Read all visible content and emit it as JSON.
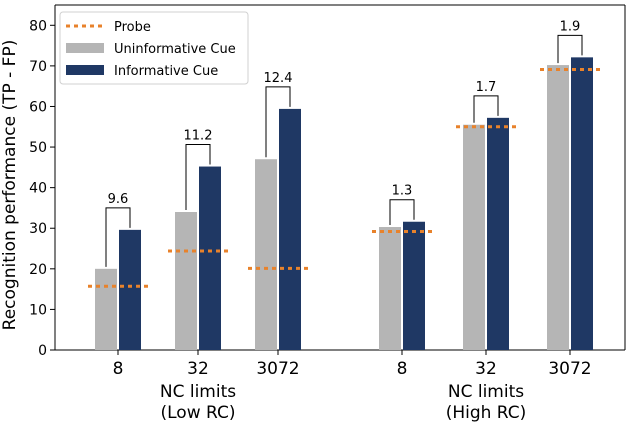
{
  "chart_data": {
    "type": "bar",
    "ylabel": "Recognition performance (TP - FP)",
    "ylim": [
      0,
      85
    ],
    "yticks": [
      0,
      10,
      20,
      30,
      40,
      50,
      60,
      70,
      80
    ],
    "grid": false,
    "legend_position": "top-left",
    "legend": [
      {
        "name": "Probe",
        "style": "dotted-line",
        "color": "#e8822b"
      },
      {
        "name": "Uninformative Cue",
        "style": "bar",
        "color": "#b5b5b5"
      },
      {
        "name": "Informative Cue",
        "style": "bar",
        "color": "#1f3864"
      }
    ],
    "groups": [
      {
        "xlabel_line1": "NC limits",
        "xlabel_line2": "(Low RC)",
        "categories": [
          "8",
          "32",
          "3072"
        ],
        "uninformative": [
          20,
          34,
          47
        ],
        "informative": [
          29.6,
          45.2,
          59.4
        ],
        "probe": [
          15.7,
          24.4,
          20.1
        ],
        "differences": [
          "9.6",
          "11.2",
          "12.4"
        ]
      },
      {
        "xlabel_line1": "NC limits",
        "xlabel_line2": "(High RC)",
        "categories": [
          "8",
          "32",
          "3072"
        ],
        "uninformative": [
          30.3,
          55.5,
          70.2
        ],
        "informative": [
          31.6,
          57.2,
          72.1
        ],
        "probe": [
          29.2,
          55.0,
          69.1
        ],
        "differences": [
          "1.3",
          "1.7",
          "1.9"
        ]
      }
    ]
  }
}
